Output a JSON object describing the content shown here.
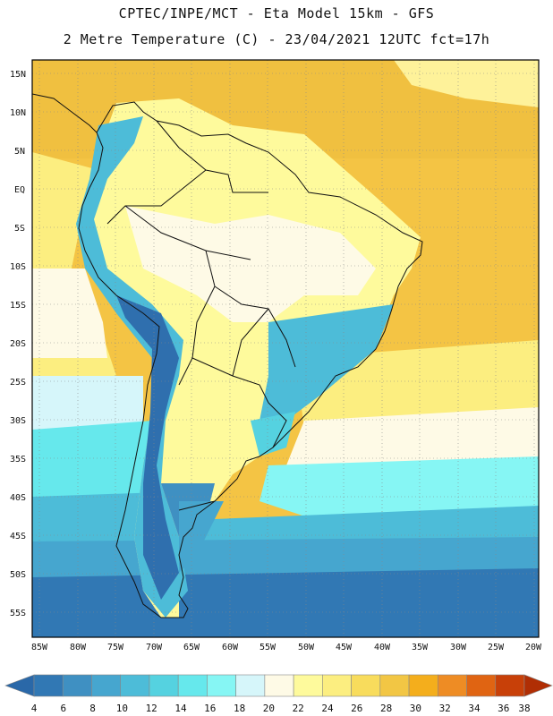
{
  "header": {
    "line1": "CPTEC/INPE/MCT -  Eta Model 15km - GFS",
    "line2": "2 Metre Temperature (C) - 23/04/2021 12UTC fct=17h"
  },
  "map": {
    "lat_labels": [
      "15N",
      "10N",
      "5N",
      "EQ",
      "5S",
      "10S",
      "15S",
      "20S",
      "25S",
      "30S",
      "35S",
      "40S",
      "45S",
      "50S",
      "55S"
    ],
    "lon_labels": [
      "85W",
      "80W",
      "75W",
      "70W",
      "65W",
      "60W",
      "55W",
      "50W",
      "45W",
      "40W",
      "35W",
      "30W",
      "25W",
      "20W"
    ],
    "lat_values": [
      15,
      10,
      5,
      0,
      -5,
      -10,
      -15,
      -20,
      -25,
      -30,
      -35,
      -40,
      -45,
      -50,
      -55
    ],
    "lon_values": [
      -85,
      -80,
      -75,
      -70,
      -65,
      -60,
      -55,
      -50,
      -45,
      -40,
      -35,
      -30,
      -25,
      -20
    ],
    "lat_range": [
      -58.5,
      16.5
    ],
    "lon_range": [
      -86,
      -19.5
    ]
  },
  "colorbar": {
    "labels": [
      "4",
      "6",
      "8",
      "10",
      "12",
      "14",
      "16",
      "18",
      "20",
      "22",
      "24",
      "26",
      "28",
      "30",
      "32",
      "34",
      "36",
      "38"
    ],
    "colors": [
      "#2a68a8",
      "#3178b4",
      "#3f90c2",
      "#46a6cf",
      "#4dbcd8",
      "#55d2e0",
      "#66e8ec",
      "#86f6f4",
      "#d6f6fa",
      "#fefae6",
      "#fefa9c",
      "#fcee80",
      "#f8dc5c",
      "#f2c644",
      "#f4ae1c",
      "#ee8c24",
      "#e06412",
      "#c84008",
      "#b02e04"
    ]
  }
}
